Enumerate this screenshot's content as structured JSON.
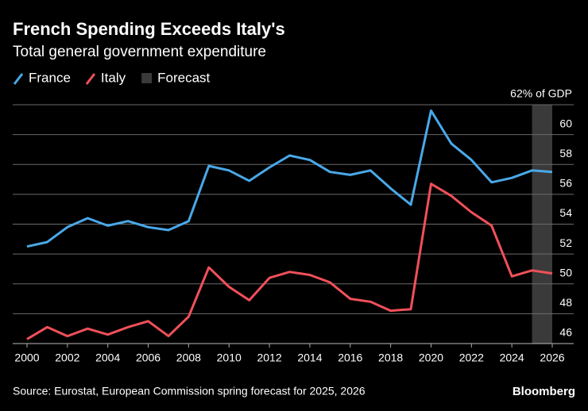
{
  "chart_data": {
    "type": "line",
    "title": "French Spending Exceeds Italy's",
    "subtitle": "Total general government expenditure",
    "x": [
      2000,
      2001,
      2002,
      2003,
      2004,
      2005,
      2006,
      2007,
      2008,
      2009,
      2010,
      2011,
      2012,
      2013,
      2014,
      2015,
      2016,
      2017,
      2018,
      2019,
      2020,
      2021,
      2022,
      2023,
      2024,
      2025,
      2026
    ],
    "series": [
      {
        "name": "France",
        "color": "#4aa8e8",
        "values": [
          52.5,
          52.8,
          53.8,
          54.4,
          53.9,
          54.2,
          53.8,
          53.6,
          54.2,
          57.9,
          57.6,
          56.9,
          57.8,
          58.6,
          58.3,
          57.5,
          57.3,
          57.6,
          56.4,
          55.3,
          61.6,
          59.4,
          58.3,
          56.8,
          57.1,
          57.6,
          57.5
        ]
      },
      {
        "name": "Italy",
        "color": "#f0505a",
        "values": [
          46.3,
          47.1,
          46.5,
          47.0,
          46.6,
          47.1,
          47.5,
          46.5,
          47.8,
          51.1,
          49.8,
          48.9,
          50.4,
          50.8,
          50.6,
          50.1,
          49.0,
          48.8,
          48.2,
          48.3,
          56.7,
          55.9,
          54.8,
          53.9,
          50.5,
          50.9,
          50.7
        ]
      }
    ],
    "forecast": {
      "label": "Forecast",
      "start": 2025,
      "end": 2026,
      "color": "#3a3a3a"
    },
    "xlim": [
      2000,
      2026
    ],
    "xticks": [
      2000,
      2002,
      2004,
      2006,
      2008,
      2010,
      2012,
      2014,
      2016,
      2018,
      2020,
      2022,
      2024,
      2026
    ],
    "ylim": [
      46,
      62
    ],
    "yticks": [
      46,
      48,
      50,
      52,
      54,
      56,
      58,
      60,
      {
        "value": 62,
        "label": "62% of GDP"
      }
    ],
    "grid": true,
    "source": "Source: Eurostat, European Commission spring forecast for 2025, 2026",
    "brand": "Bloomberg"
  }
}
